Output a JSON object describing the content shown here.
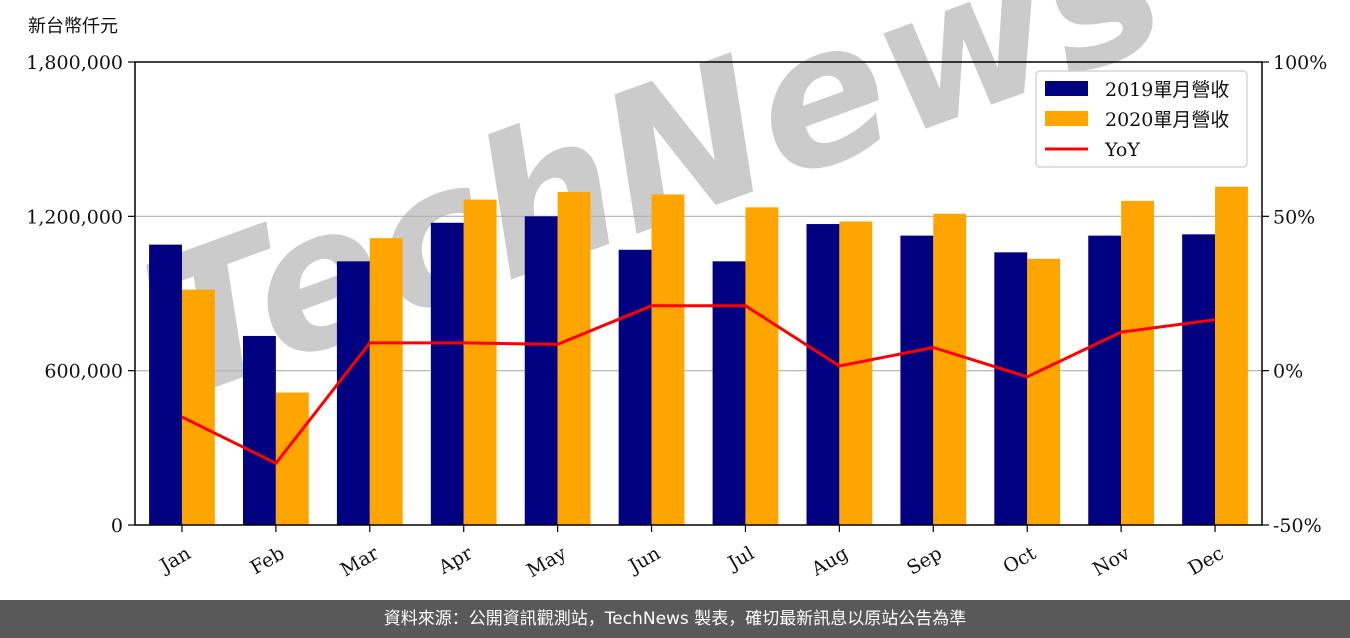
{
  "unit_label": "新台幣仟元",
  "footer_text": "資料來源：公開資訊觀測站，TechNews 製表，確切最新訊息以原站公告為準",
  "watermark": "TechNews",
  "colors": {
    "bar2019": "#000080",
    "bar2020": "#FFA500",
    "yoy": "#FF0000",
    "grid": "#b0b0b0",
    "footer_bg": "#595959"
  },
  "chart_data": {
    "type": "bar",
    "categories": [
      "Jan",
      "Feb",
      "Mar",
      "Apr",
      "May",
      "Jun",
      "Jul",
      "Aug",
      "Sep",
      "Oct",
      "Nov",
      "Dec"
    ],
    "series": [
      {
        "name": "2019單月營收",
        "type": "bar",
        "axis": "left",
        "color": "#000080",
        "values": [
          1090000,
          735000,
          1025000,
          1175000,
          1200000,
          1070000,
          1025000,
          1170000,
          1125000,
          1060000,
          1125000,
          1130000
        ]
      },
      {
        "name": "2020單月營收",
        "type": "bar",
        "axis": "left",
        "color": "#FFA500",
        "values": [
          915000,
          515000,
          1115000,
          1265000,
          1295000,
          1285000,
          1235000,
          1180000,
          1210000,
          1035000,
          1260000,
          1315000
        ]
      },
      {
        "name": "YoY",
        "type": "line",
        "axis": "right",
        "color": "#FF0000",
        "values": [
          -15,
          -30,
          9,
          9,
          8.5,
          21,
          21,
          1.5,
          7.5,
          -2,
          12.5,
          16.5
        ]
      }
    ],
    "y_left": {
      "ylim": [
        0,
        1800000
      ],
      "ticks": [
        0,
        600000,
        1200000,
        1800000
      ],
      "tick_labels": [
        "0",
        "600,000",
        "1,200,000",
        "1,800,000"
      ]
    },
    "y_right": {
      "ylim": [
        -50,
        100
      ],
      "ticks": [
        -50,
        0,
        50,
        100
      ],
      "tick_labels": [
        "-50%",
        "0%",
        "50%",
        "100%"
      ]
    },
    "grid": "horizontal",
    "legend": {
      "position": "top-right",
      "entries": [
        "2019單月營收",
        "2020單月營收",
        "YoY"
      ]
    }
  }
}
